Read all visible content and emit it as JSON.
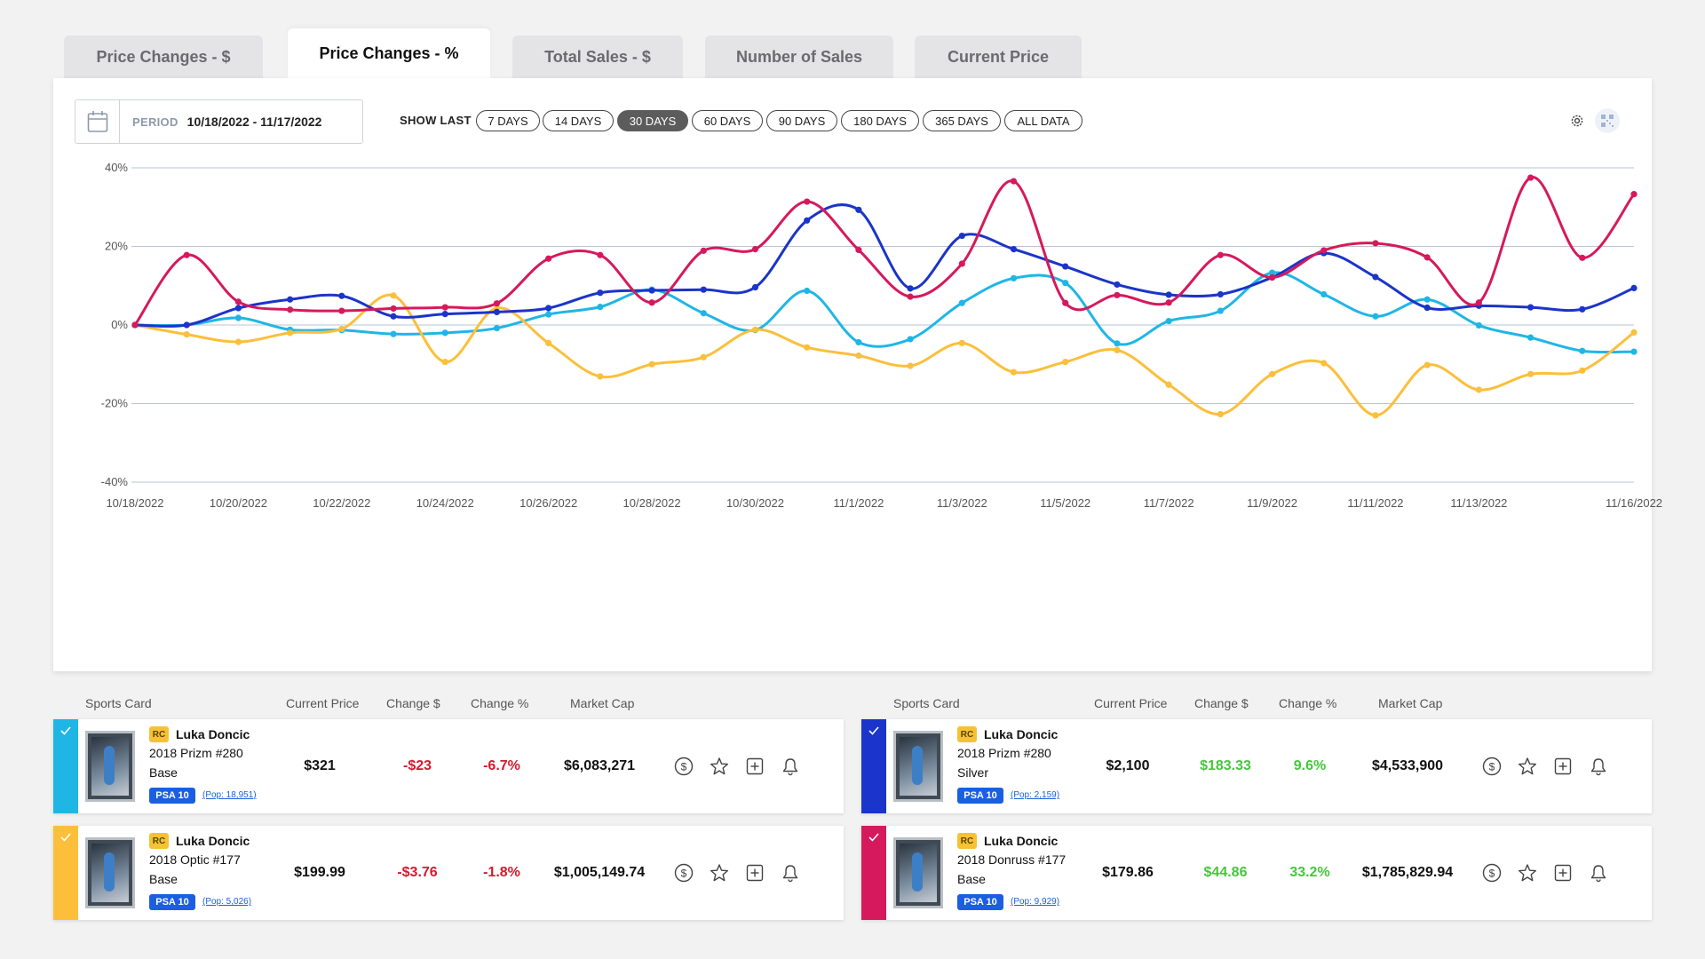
{
  "tabs": [
    "Price Changes - $",
    "Price Changes - %",
    "Total Sales - $",
    "Number of Sales",
    "Current Price"
  ],
  "active_tab": 1,
  "period": {
    "label": "PERIOD",
    "value": "10/18/2022 - 11/17/2022"
  },
  "show_last": {
    "label": "SHOW LAST",
    "options": [
      "7 DAYS",
      "14 DAYS",
      "30 DAYS",
      "60 DAYS",
      "90 DAYS",
      "180 DAYS",
      "365 DAYS",
      "ALL DATA"
    ],
    "selected": "30 DAYS"
  },
  "icons": {
    "settings": "gear-icon",
    "qr": "qr-code-icon",
    "calendar": "calendar-icon"
  },
  "colors": {
    "series_1": "#1fb6e6",
    "series_2": "#1b34c9",
    "series_3": "#fbbf3b",
    "series_4": "#d6195c",
    "positive": "#46c63c",
    "negative": "#d61a2c"
  },
  "chart_data": {
    "type": "line",
    "title": "",
    "xlabel": "",
    "ylabel": "",
    "x": [
      "10/18/2022",
      "10/19/2022",
      "10/20/2022",
      "10/21/2022",
      "10/22/2022",
      "10/23/2022",
      "10/24/2022",
      "10/25/2022",
      "10/26/2022",
      "10/27/2022",
      "10/28/2022",
      "10/29/2022",
      "10/30/2022",
      "10/31/2022",
      "11/1/2022",
      "11/2/2022",
      "11/3/2022",
      "11/4/2022",
      "11/5/2022",
      "11/6/2022",
      "11/7/2022",
      "11/8/2022",
      "11/9/2022",
      "11/10/2022",
      "11/11/2022",
      "11/12/2022",
      "11/13/2022",
      "11/14/2022",
      "11/15/2022",
      "11/16/2022"
    ],
    "x_tick_labels": [
      "10/18/2022",
      "10/20/2022",
      "10/22/2022",
      "10/24/2022",
      "10/26/2022",
      "10/28/2022",
      "10/30/2022",
      "11/1/2022",
      "11/3/2022",
      "11/5/2022",
      "11/7/2022",
      "11/9/2022",
      "11/11/2022",
      "11/13/2022",
      "11/16/2022"
    ],
    "x_tick_index": [
      0,
      2,
      4,
      6,
      8,
      10,
      12,
      14,
      16,
      18,
      20,
      22,
      24,
      26,
      29
    ],
    "y_ticks": [
      "40%",
      "20%",
      "0%",
      "-20%",
      "-40%"
    ],
    "ylim": [
      -40,
      40
    ],
    "grid": true,
    "series": [
      {
        "values": [
          0,
          0,
          1.8,
          -1.2,
          -1.3,
          -2.3,
          -2,
          -0.8,
          2.7,
          4.6,
          9,
          3,
          -1.3,
          8.7,
          -4.4,
          -3.6,
          5.6,
          11.9,
          10.7,
          -4.7,
          1,
          3.6,
          13.3,
          7.8,
          2.2,
          6.5,
          -0.1,
          -3.2,
          -6.6,
          -6.8
        ]
      },
      {
        "values": [
          0,
          0,
          4.3,
          6.5,
          7.4,
          2.2,
          2.8,
          3.3,
          4.3,
          8.2,
          8.8,
          9,
          9.6,
          26.6,
          29.3,
          9.3,
          22.7,
          19.3,
          14.9,
          10.3,
          7.7,
          7.8,
          12.1,
          18.3,
          12.2,
          4.4,
          4.9,
          4.5,
          4,
          9.4
        ]
      },
      {
        "values": [
          0,
          -2.4,
          -4.3,
          -2,
          -1,
          7.5,
          -9.4,
          4.3,
          -4.6,
          -13.1,
          -10,
          -8.2,
          -1.2,
          -5.7,
          -7.8,
          -10.4,
          -4.6,
          -12,
          -9.4,
          -6.4,
          -15.2,
          -22.7,
          -12.5,
          -9.7,
          -23,
          -10.2,
          -16.5,
          -12.5,
          -11.6,
          -1.9
        ]
      },
      {
        "values": [
          0,
          17.8,
          5.9,
          3.9,
          3.6,
          4.2,
          4.5,
          5.5,
          16.9,
          17.8,
          5.7,
          18.9,
          19.3,
          31.4,
          19.1,
          7.2,
          15.6,
          36.6,
          5.6,
          7.6,
          5.7,
          17.8,
          12.1,
          19,
          20.8,
          17.2,
          5.7,
          37.5,
          17.1,
          33.3
        ]
      }
    ]
  },
  "table_headers": {
    "card": "Sports Card",
    "price": "Current Price",
    "change_usd": "Change $",
    "change_pct": "Change %",
    "market_cap": "Market Cap"
  },
  "cards": [
    {
      "badge": "RC",
      "name": "Luka Doncic",
      "set": "2018 Prizm #280",
      "variant": "Base",
      "grade": "PSA 10",
      "pop": "(Pop: 18,951)",
      "price": "$321",
      "change_usd": "-$23",
      "change_pct": "-6.7%",
      "market_cap": "$6,083,271",
      "color": "#1fb6e6",
      "trend": "negative"
    },
    {
      "badge": "RC",
      "name": "Luka Doncic",
      "set": "2018 Optic #177",
      "variant": "Base",
      "grade": "PSA 10",
      "pop": "(Pop: 5,026)",
      "price": "$199.99",
      "change_usd": "-$3.76",
      "change_pct": "-1.8%",
      "market_cap": "$1,005,149.74",
      "color": "#fbbf3b",
      "trend": "negative"
    },
    {
      "badge": "RC",
      "name": "Luka Doncic",
      "set": "2018 Prizm #280",
      "variant": "Silver",
      "grade": "PSA 10",
      "pop": "(Pop: 2,159)",
      "price": "$2,100",
      "change_usd": "$183.33",
      "change_pct": "9.6%",
      "market_cap": "$4,533,900",
      "color": "#1b34c9",
      "trend": "positive"
    },
    {
      "badge": "RC",
      "name": "Luka Doncic",
      "set": "2018 Donruss #177",
      "variant": "Base",
      "grade": "PSA 10",
      "pop": "(Pop: 9,929)",
      "price": "$179.86",
      "change_usd": "$44.86",
      "change_pct": "33.2%",
      "market_cap": "$1,785,829.94",
      "color": "#d6195c",
      "trend": "positive"
    }
  ]
}
